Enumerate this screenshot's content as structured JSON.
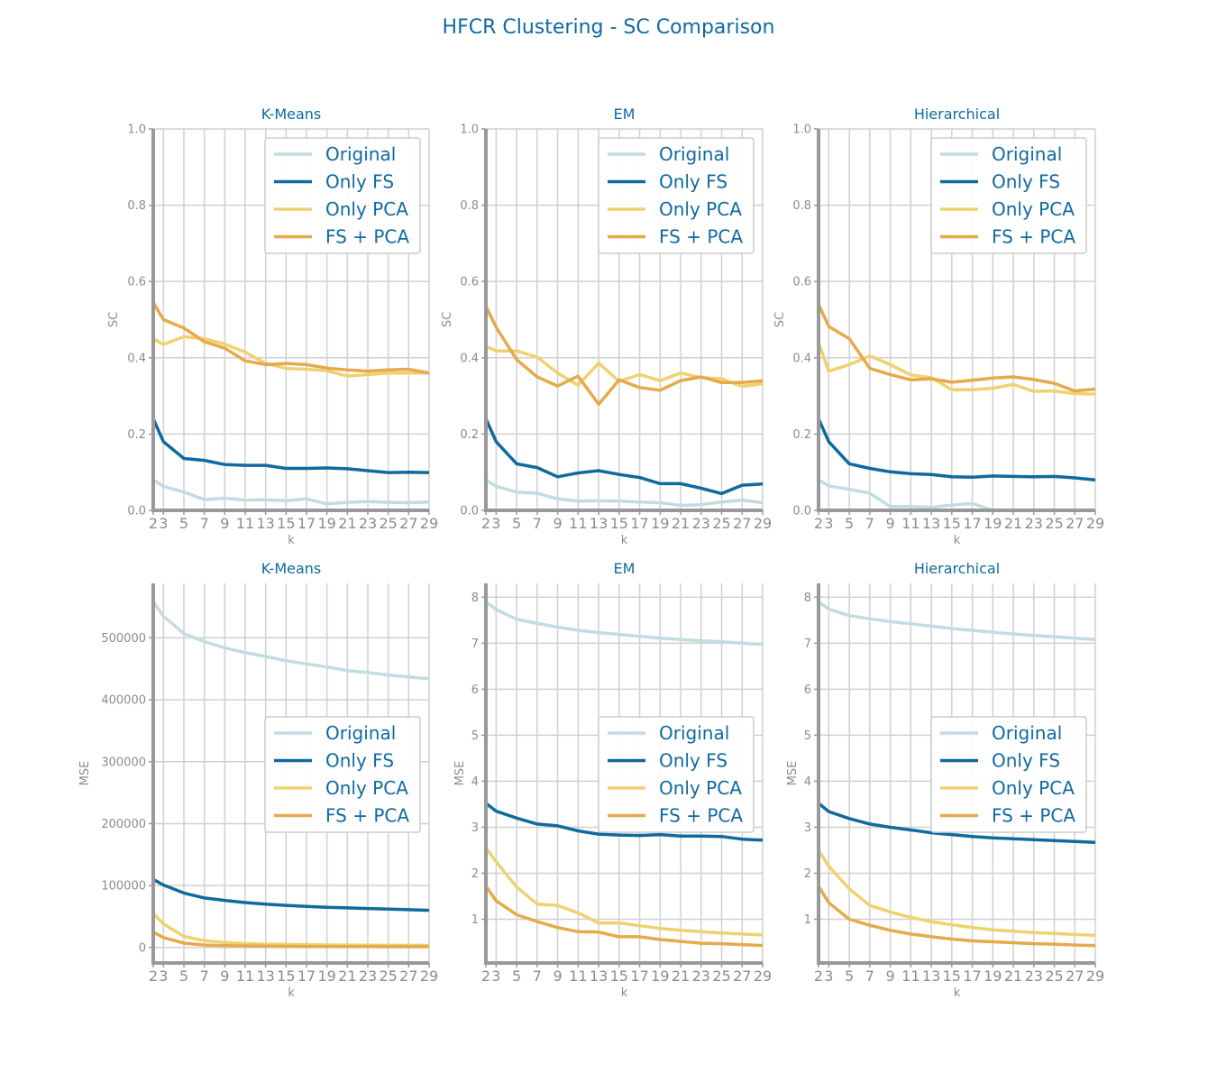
{
  "figure_title": "HFCR Clustering - SC Comparison",
  "colors": {
    "Original": "#c1dde2",
    "Only FS": "#106aa0",
    "Only PCA": "#efd270",
    "FS + PCA": "#e5aa4b",
    "title": "#106aa0",
    "axis": "#999999",
    "grid": "#d0d0d0",
    "tick_text": "#8c8c8c"
  },
  "chart_data": [
    {
      "type": "line",
      "title": "K-Means",
      "xlabel": "k",
      "ylabel": "SC",
      "x": [
        2,
        3,
        5,
        7,
        9,
        11,
        13,
        15,
        17,
        19,
        21,
        23,
        25,
        27,
        29
      ],
      "xticks": [
        2,
        3,
        5,
        7,
        9,
        11,
        13,
        15,
        17,
        19,
        21,
        23,
        25,
        27,
        29
      ],
      "ylim": [
        0,
        1.0
      ],
      "yticks": [
        "0.0",
        "0.2",
        "0.4",
        "0.6",
        "0.8",
        "1.0"
      ],
      "ytick_values": [
        0,
        0.2,
        0.4,
        0.6,
        0.8,
        1.0
      ],
      "grid": true,
      "legend": "top-right",
      "series": [
        {
          "name": "Original",
          "values": [
            0.08,
            0.063,
            0.048,
            0.028,
            0.032,
            0.027,
            0.028,
            0.025,
            0.03,
            0.017,
            0.021,
            0.023,
            0.021,
            0.02,
            0.022
          ]
        },
        {
          "name": "Only FS",
          "values": [
            0.24,
            0.18,
            0.136,
            0.131,
            0.12,
            0.118,
            0.118,
            0.11,
            0.11,
            0.111,
            0.109,
            0.104,
            0.099,
            0.1,
            0.099
          ]
        },
        {
          "name": "Only PCA",
          "values": [
            0.45,
            0.435,
            0.455,
            0.45,
            0.436,
            0.415,
            0.385,
            0.372,
            0.37,
            0.366,
            0.352,
            0.356,
            0.36,
            0.36,
            0.36
          ]
        },
        {
          "name": "FS + PCA",
          "values": [
            0.545,
            0.5,
            0.478,
            0.442,
            0.425,
            0.392,
            0.382,
            0.385,
            0.382,
            0.373,
            0.368,
            0.365,
            0.368,
            0.37,
            0.36
          ]
        }
      ]
    },
    {
      "type": "line",
      "title": "EM",
      "xlabel": "k",
      "ylabel": "SC",
      "x": [
        2,
        3,
        5,
        7,
        9,
        11,
        13,
        15,
        17,
        19,
        21,
        23,
        25,
        27,
        29
      ],
      "xticks": [
        2,
        3,
        5,
        7,
        9,
        11,
        13,
        15,
        17,
        19,
        21,
        23,
        25,
        27,
        29
      ],
      "ylim": [
        0,
        1.0
      ],
      "yticks": [
        "0.0",
        "0.2",
        "0.4",
        "0.6",
        "0.8",
        "1.0"
      ],
      "ytick_values": [
        0,
        0.2,
        0.4,
        0.6,
        0.8,
        1.0
      ],
      "grid": true,
      "legend": "top-right",
      "series": [
        {
          "name": "Original",
          "values": [
            0.08,
            0.063,
            0.048,
            0.045,
            0.03,
            0.024,
            0.025,
            0.024,
            0.022,
            0.02,
            0.013,
            0.015,
            0.022,
            0.027,
            0.02
          ]
        },
        {
          "name": "Only FS",
          "values": [
            0.24,
            0.18,
            0.122,
            0.112,
            0.088,
            0.098,
            0.104,
            0.094,
            0.086,
            0.07,
            0.07,
            0.058,
            0.044,
            0.066,
            0.069
          ]
        },
        {
          "name": "Only PCA",
          "values": [
            0.43,
            0.418,
            0.418,
            0.402,
            0.36,
            0.328,
            0.386,
            0.338,
            0.356,
            0.34,
            0.36,
            0.348,
            0.345,
            0.325,
            0.332
          ]
        },
        {
          "name": "FS + PCA",
          "values": [
            0.535,
            0.48,
            0.395,
            0.35,
            0.326,
            0.352,
            0.278,
            0.342,
            0.322,
            0.315,
            0.34,
            0.35,
            0.335,
            0.335,
            0.34
          ]
        }
      ]
    },
    {
      "type": "line",
      "title": "Hierarchical",
      "xlabel": "k",
      "ylabel": "SC",
      "x": [
        2,
        3,
        5,
        7,
        9,
        11,
        13,
        15,
        17,
        19,
        21,
        23,
        25,
        27,
        29
      ],
      "xticks": [
        2,
        3,
        5,
        7,
        9,
        11,
        13,
        15,
        17,
        19,
        21,
        23,
        25,
        27,
        29
      ],
      "ylim": [
        0,
        1.0
      ],
      "yticks": [
        "0.0",
        "0.2",
        "0.4",
        "0.6",
        "0.8",
        "1.0"
      ],
      "ytick_values": [
        0,
        0.2,
        0.4,
        0.6,
        0.8,
        1.0
      ],
      "grid": true,
      "legend": "top-right",
      "series": [
        {
          "name": "Original",
          "values": [
            0.08,
            0.064,
            0.055,
            0.045,
            0.01,
            0.01,
            0.008,
            0.014,
            0.018,
            0.0,
            null,
            null,
            null,
            null,
            null
          ]
        },
        {
          "name": "Only FS",
          "values": [
            0.24,
            0.18,
            0.122,
            0.11,
            0.101,
            0.096,
            0.094,
            0.088,
            0.087,
            0.09,
            0.089,
            0.088,
            0.089,
            0.085,
            0.08
          ]
        },
        {
          "name": "Only PCA",
          "values": [
            0.44,
            0.365,
            0.382,
            0.405,
            0.382,
            0.355,
            0.348,
            0.316,
            0.316,
            0.32,
            0.33,
            0.312,
            0.313,
            0.306,
            0.305
          ]
        },
        {
          "name": "FS + PCA",
          "values": [
            0.54,
            0.482,
            0.45,
            0.372,
            0.356,
            0.342,
            0.345,
            0.336,
            0.341,
            0.347,
            0.35,
            0.343,
            0.333,
            0.313,
            0.318
          ]
        }
      ]
    },
    {
      "type": "line",
      "title": "K-Means",
      "xlabel": "k",
      "ylabel": "MSE",
      "x": [
        2,
        3,
        5,
        7,
        9,
        11,
        13,
        15,
        17,
        19,
        21,
        23,
        25,
        27,
        29
      ],
      "xticks": [
        2,
        3,
        5,
        7,
        9,
        11,
        13,
        15,
        17,
        19,
        21,
        23,
        25,
        27,
        29
      ],
      "ylim": [
        -25000,
        588000
      ],
      "yticks": [
        "0",
        "100000",
        "200000",
        "300000",
        "400000",
        "500000"
      ],
      "ytick_values": [
        0,
        100000,
        200000,
        300000,
        400000,
        500000
      ],
      "grid": true,
      "legend": "center-right",
      "series": [
        {
          "name": "Original",
          "values": [
            558000,
            535000,
            507000,
            494000,
            484000,
            476000,
            470000,
            463000,
            458000,
            453000,
            447000,
            444000,
            440000,
            437000,
            434000
          ]
        },
        {
          "name": "Only FS",
          "values": [
            110000,
            101000,
            88000,
            80000,
            76000,
            72500,
            70000,
            68000,
            66500,
            65000,
            64000,
            63000,
            62000,
            61000,
            60000
          ]
        },
        {
          "name": "Only PCA",
          "values": [
            55000,
            38000,
            18000,
            11000,
            8000,
            6500,
            5500,
            5000,
            4500,
            4200,
            4000,
            3800,
            3600,
            3500,
            3400
          ]
        },
        {
          "name": "FS + PCA",
          "values": [
            25000,
            16000,
            7000,
            4000,
            3000,
            2500,
            2200,
            2000,
            1800,
            1700,
            1600,
            1500,
            1400,
            1400,
            1300
          ]
        }
      ]
    },
    {
      "type": "line",
      "title": "EM",
      "xlabel": "k",
      "ylabel": "MSE",
      "x": [
        2,
        3,
        5,
        7,
        9,
        11,
        13,
        15,
        17,
        19,
        21,
        23,
        25,
        27,
        29
      ],
      "xticks": [
        2,
        3,
        5,
        7,
        9,
        11,
        13,
        15,
        17,
        19,
        21,
        23,
        25,
        27,
        29
      ],
      "ylim": [
        0.05,
        8.3
      ],
      "yticks": [
        "1",
        "2",
        "3",
        "4",
        "5",
        "6",
        "7",
        "8"
      ],
      "ytick_values": [
        1,
        2,
        3,
        4,
        5,
        6,
        7,
        8
      ],
      "grid": true,
      "legend": "center-right",
      "series": [
        {
          "name": "Original",
          "values": [
            7.9,
            7.73,
            7.52,
            7.43,
            7.35,
            7.28,
            7.23,
            7.19,
            7.15,
            7.11,
            7.08,
            7.05,
            7.03,
            7.0,
            6.97
          ]
        },
        {
          "name": "Only FS",
          "values": [
            3.52,
            3.35,
            3.2,
            3.07,
            3.03,
            2.92,
            2.85,
            2.83,
            2.82,
            2.84,
            2.81,
            2.81,
            2.8,
            2.74,
            2.72
          ]
        },
        {
          "name": "Only PCA",
          "values": [
            2.55,
            2.25,
            1.7,
            1.33,
            1.3,
            1.14,
            0.92,
            0.92,
            0.86,
            0.8,
            0.76,
            0.73,
            0.7,
            0.68,
            0.66
          ]
        },
        {
          "name": "FS + PCA",
          "values": [
            1.72,
            1.4,
            1.1,
            0.95,
            0.82,
            0.73,
            0.72,
            0.62,
            0.62,
            0.56,
            0.52,
            0.48,
            0.47,
            0.45,
            0.43
          ]
        }
      ]
    },
    {
      "type": "line",
      "title": "Hierarchical",
      "xlabel": "k",
      "ylabel": "MSE",
      "x": [
        2,
        3,
        5,
        7,
        9,
        11,
        13,
        15,
        17,
        19,
        21,
        23,
        25,
        27,
        29
      ],
      "xticks": [
        2,
        3,
        5,
        7,
        9,
        11,
        13,
        15,
        17,
        19,
        21,
        23,
        25,
        27,
        29
      ],
      "ylim": [
        0.05,
        8.3
      ],
      "yticks": [
        "1",
        "2",
        "3",
        "4",
        "5",
        "6",
        "7",
        "8"
      ],
      "ytick_values": [
        1,
        2,
        3,
        4,
        5,
        6,
        7,
        8
      ],
      "grid": true,
      "legend": "center-right",
      "series": [
        {
          "name": "Original",
          "values": [
            7.9,
            7.74,
            7.6,
            7.53,
            7.47,
            7.42,
            7.37,
            7.32,
            7.28,
            7.24,
            7.2,
            7.17,
            7.14,
            7.11,
            7.08
          ]
        },
        {
          "name": "Only FS",
          "values": [
            3.52,
            3.34,
            3.19,
            3.07,
            3.0,
            2.94,
            2.88,
            2.84,
            2.8,
            2.77,
            2.75,
            2.73,
            2.71,
            2.69,
            2.67
          ]
        },
        {
          "name": "Only PCA",
          "values": [
            2.5,
            2.15,
            1.66,
            1.3,
            1.16,
            1.04,
            0.95,
            0.88,
            0.82,
            0.77,
            0.74,
            0.71,
            0.69,
            0.67,
            0.65
          ]
        },
        {
          "name": "FS + PCA",
          "values": [
            1.72,
            1.36,
            1.0,
            0.87,
            0.76,
            0.68,
            0.62,
            0.57,
            0.53,
            0.51,
            0.49,
            0.47,
            0.46,
            0.44,
            0.43
          ]
        }
      ]
    }
  ]
}
